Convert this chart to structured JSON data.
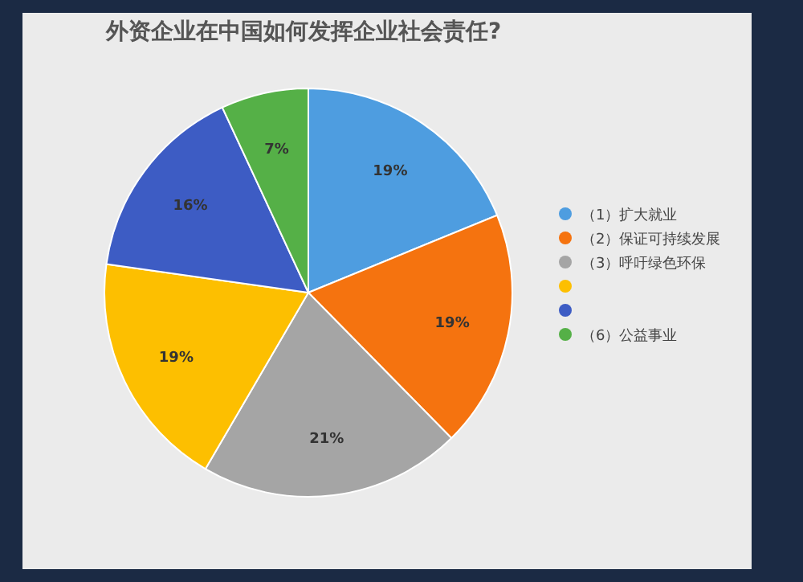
{
  "chart_data": {
    "type": "pie",
    "title": "外资企业在中国如何发挥企业社会责任?",
    "categories": [
      "（1）扩大就业",
      "（2）保证可持续发展",
      "（3）呼吁绿色环保",
      null,
      null,
      "（6）公益事业"
    ],
    "values": [
      19,
      19,
      21,
      19,
      16,
      7
    ],
    "value_labels": [
      "19%",
      "19%",
      "21%",
      "19%",
      "16%",
      "7%"
    ],
    "colors": [
      "#4e9de0",
      "#f5730f",
      "#a5a5a5",
      "#fdbf00",
      "#3d5cc4",
      "#55b047"
    ],
    "legend": "right"
  }
}
